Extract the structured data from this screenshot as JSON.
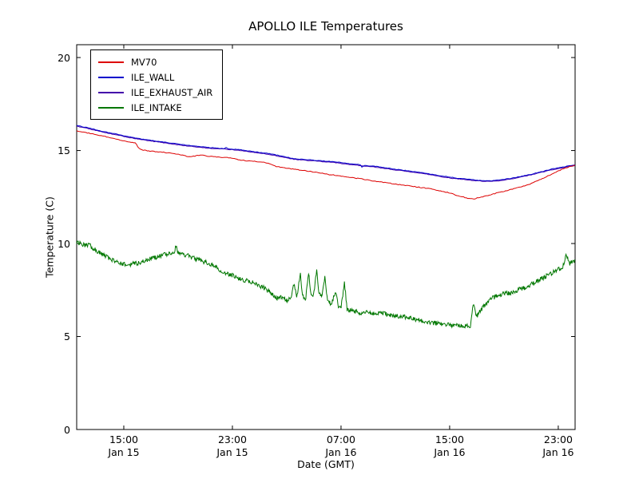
{
  "chart_data": {
    "type": "line",
    "title": "APOLLO ILE Temperatures",
    "xlabel": "Date (GMT)",
    "ylabel": "Temperature (C)",
    "ylim": [
      0,
      20.69
    ],
    "xlim": [
      11.53,
      48.24
    ],
    "x_unit": "hours since Jan 15 00:00 GMT",
    "grid": false,
    "legend_position": "upper left",
    "yticks": [
      {
        "value": 0,
        "label": "0"
      },
      {
        "value": 5,
        "label": "5"
      },
      {
        "value": 10,
        "label": "10"
      },
      {
        "value": 15,
        "label": "15"
      },
      {
        "value": 20,
        "label": "20"
      }
    ],
    "xticks": [
      {
        "value": 15,
        "time": "15:00",
        "date": "Jan 15"
      },
      {
        "value": 23,
        "time": "23:00",
        "date": "Jan 15"
      },
      {
        "value": 31,
        "time": "07:00",
        "date": "Jan 16"
      },
      {
        "value": 39,
        "time": "15:00",
        "date": "Jan 16"
      },
      {
        "value": 47,
        "time": "23:00",
        "date": "Jan 16"
      }
    ],
    "noise_seed": 42,
    "series": [
      {
        "name": "MV70",
        "color": "#dd0000",
        "noise": 0.02,
        "points": [
          [
            11.53,
            16.05
          ],
          [
            12.0,
            16.0
          ],
          [
            12.5,
            15.92
          ],
          [
            13.0,
            15.85
          ],
          [
            13.5,
            15.78
          ],
          [
            14.0,
            15.68
          ],
          [
            14.5,
            15.6
          ],
          [
            15.0,
            15.52
          ],
          [
            15.5,
            15.45
          ],
          [
            15.9,
            15.4
          ],
          [
            16.05,
            15.15
          ],
          [
            16.3,
            15.05
          ],
          [
            16.6,
            15.0
          ],
          [
            17.0,
            14.97
          ],
          [
            17.5,
            14.93
          ],
          [
            18.0,
            14.9
          ],
          [
            18.5,
            14.85
          ],
          [
            19.0,
            14.8
          ],
          [
            19.5,
            14.72
          ],
          [
            19.9,
            14.65
          ],
          [
            20.3,
            14.72
          ],
          [
            20.7,
            14.75
          ],
          [
            21.2,
            14.7
          ],
          [
            22.0,
            14.65
          ],
          [
            22.6,
            14.62
          ],
          [
            23.0,
            14.58
          ],
          [
            23.5,
            14.5
          ],
          [
            24.0,
            14.45
          ],
          [
            24.5,
            14.42
          ],
          [
            25.0,
            14.4
          ],
          [
            25.4,
            14.35
          ],
          [
            25.8,
            14.28
          ],
          [
            26.2,
            14.15
          ],
          [
            26.6,
            14.1
          ],
          [
            27.0,
            14.05
          ],
          [
            27.5,
            14.0
          ],
          [
            28.0,
            13.95
          ],
          [
            28.5,
            13.9
          ],
          [
            29.0,
            13.85
          ],
          [
            29.5,
            13.8
          ],
          [
            30.0,
            13.72
          ],
          [
            30.5,
            13.68
          ],
          [
            31.0,
            13.62
          ],
          [
            31.5,
            13.58
          ],
          [
            32.0,
            13.52
          ],
          [
            32.5,
            13.48
          ],
          [
            33.0,
            13.42
          ],
          [
            33.5,
            13.35
          ],
          [
            34.0,
            13.3
          ],
          [
            34.5,
            13.25
          ],
          [
            35.0,
            13.2
          ],
          [
            35.5,
            13.15
          ],
          [
            36.0,
            13.1
          ],
          [
            36.5,
            13.05
          ],
          [
            37.0,
            13.0
          ],
          [
            37.5,
            12.95
          ],
          [
            38.0,
            12.88
          ],
          [
            38.5,
            12.8
          ],
          [
            39.0,
            12.72
          ],
          [
            39.5,
            12.6
          ],
          [
            40.0,
            12.5
          ],
          [
            40.4,
            12.42
          ],
          [
            40.8,
            12.4
          ],
          [
            41.2,
            12.48
          ],
          [
            41.6,
            12.55
          ],
          [
            42.0,
            12.62
          ],
          [
            42.5,
            12.72
          ],
          [
            43.0,
            12.8
          ],
          [
            43.5,
            12.9
          ],
          [
            44.0,
            13.0
          ],
          [
            44.5,
            13.1
          ],
          [
            45.0,
            13.22
          ],
          [
            45.5,
            13.38
          ],
          [
            46.0,
            13.55
          ],
          [
            46.5,
            13.72
          ],
          [
            47.0,
            13.9
          ],
          [
            47.5,
            14.05
          ],
          [
            48.24,
            14.22
          ]
        ]
      },
      {
        "name": "ILE_WALL",
        "color": "#0000cc",
        "noise": 0.015,
        "points": [
          [
            11.53,
            16.35
          ],
          [
            12.0,
            16.28
          ],
          [
            12.5,
            16.2
          ],
          [
            13.0,
            16.1
          ],
          [
            13.5,
            16.02
          ],
          [
            14.0,
            15.95
          ],
          [
            14.5,
            15.88
          ],
          [
            15.0,
            15.8
          ],
          [
            15.5,
            15.72
          ],
          [
            16.0,
            15.65
          ],
          [
            16.5,
            15.6
          ],
          [
            17.0,
            15.55
          ],
          [
            17.5,
            15.5
          ],
          [
            18.0,
            15.45
          ],
          [
            18.5,
            15.4
          ],
          [
            19.0,
            15.35
          ],
          [
            19.5,
            15.3
          ],
          [
            20.0,
            15.25
          ],
          [
            20.5,
            15.22
          ],
          [
            21.0,
            15.18
          ],
          [
            21.5,
            15.15
          ],
          [
            22.0,
            15.12
          ],
          [
            22.4,
            15.1
          ],
          [
            22.55,
            15.18
          ],
          [
            22.7,
            15.08
          ],
          [
            23.0,
            15.08
          ],
          [
            23.5,
            15.05
          ],
          [
            24.0,
            15.0
          ],
          [
            24.5,
            14.95
          ],
          [
            25.0,
            14.9
          ],
          [
            25.5,
            14.85
          ],
          [
            26.0,
            14.8
          ],
          [
            26.5,
            14.72
          ],
          [
            27.0,
            14.65
          ],
          [
            27.4,
            14.58
          ],
          [
            27.8,
            14.55
          ],
          [
            28.2,
            14.52
          ],
          [
            28.6,
            14.5
          ],
          [
            29.0,
            14.48
          ],
          [
            29.5,
            14.45
          ],
          [
            30.0,
            14.42
          ],
          [
            30.5,
            14.4
          ],
          [
            31.0,
            14.35
          ],
          [
            31.5,
            14.3
          ],
          [
            32.0,
            14.27
          ],
          [
            32.4,
            14.24
          ],
          [
            32.55,
            14.1
          ],
          [
            32.7,
            14.2
          ],
          [
            33.0,
            14.18
          ],
          [
            33.5,
            14.15
          ],
          [
            34.0,
            14.1
          ],
          [
            34.5,
            14.05
          ],
          [
            35.0,
            14.0
          ],
          [
            35.5,
            13.95
          ],
          [
            36.0,
            13.9
          ],
          [
            36.5,
            13.85
          ],
          [
            37.0,
            13.8
          ],
          [
            37.5,
            13.75
          ],
          [
            38.0,
            13.68
          ],
          [
            38.5,
            13.62
          ],
          [
            39.0,
            13.58
          ],
          [
            39.5,
            13.52
          ],
          [
            40.0,
            13.48
          ],
          [
            40.5,
            13.45
          ],
          [
            41.0,
            13.4
          ],
          [
            41.5,
            13.38
          ],
          [
            42.0,
            13.38
          ],
          [
            42.5,
            13.4
          ],
          [
            43.0,
            13.45
          ],
          [
            43.5,
            13.5
          ],
          [
            44.0,
            13.58
          ],
          [
            44.5,
            13.65
          ],
          [
            45.0,
            13.72
          ],
          [
            45.5,
            13.82
          ],
          [
            46.0,
            13.9
          ],
          [
            46.5,
            14.0
          ],
          [
            47.0,
            14.08
          ],
          [
            47.6,
            14.15
          ],
          [
            48.24,
            14.22
          ]
        ]
      },
      {
        "name": "ILE_EXHAUST_AIR",
        "color": "#4400aa",
        "noise": 0.015,
        "points": [
          [
            11.53,
            16.31
          ],
          [
            12.5,
            16.16
          ],
          [
            13.5,
            15.98
          ],
          [
            14.5,
            15.84
          ],
          [
            15.5,
            15.68
          ],
          [
            16.5,
            15.56
          ],
          [
            17.5,
            15.46
          ],
          [
            18.5,
            15.36
          ],
          [
            19.5,
            15.26
          ],
          [
            20.5,
            15.18
          ],
          [
            21.5,
            15.11
          ],
          [
            22.5,
            15.07
          ],
          [
            23.5,
            15.01
          ],
          [
            24.5,
            14.91
          ],
          [
            25.5,
            14.81
          ],
          [
            26.5,
            14.68
          ],
          [
            27.5,
            14.53
          ],
          [
            28.5,
            14.47
          ],
          [
            29.5,
            14.41
          ],
          [
            30.5,
            14.36
          ],
          [
            31.5,
            14.26
          ],
          [
            32.5,
            14.18
          ],
          [
            33.5,
            14.11
          ],
          [
            34.5,
            14.01
          ],
          [
            35.5,
            13.91
          ],
          [
            36.5,
            13.81
          ],
          [
            37.5,
            13.71
          ],
          [
            38.5,
            13.58
          ],
          [
            39.5,
            13.48
          ],
          [
            40.5,
            13.41
          ],
          [
            41.5,
            13.34
          ],
          [
            42.5,
            13.36
          ],
          [
            43.5,
            13.46
          ],
          [
            44.5,
            13.61
          ],
          [
            45.5,
            13.78
          ],
          [
            46.5,
            13.96
          ],
          [
            47.5,
            14.1
          ],
          [
            48.24,
            14.2
          ]
        ]
      },
      {
        "name": "ILE_INTAKE",
        "color": "#007700",
        "noise": 0.12,
        "points": [
          [
            11.53,
            10.0
          ],
          [
            11.8,
            10.05
          ],
          [
            12.1,
            9.9
          ],
          [
            12.4,
            9.95
          ],
          [
            12.8,
            9.72
          ],
          [
            13.2,
            9.5
          ],
          [
            13.6,
            9.35
          ],
          [
            14.0,
            9.2
          ],
          [
            14.4,
            9.02
          ],
          [
            14.8,
            8.9
          ],
          [
            15.2,
            8.85
          ],
          [
            15.6,
            8.9
          ],
          [
            16.0,
            8.95
          ],
          [
            16.5,
            9.05
          ],
          [
            17.0,
            9.18
          ],
          [
            17.5,
            9.3
          ],
          [
            18.0,
            9.4
          ],
          [
            18.4,
            9.45
          ],
          [
            18.7,
            9.55
          ],
          [
            18.85,
            9.85
          ],
          [
            19.0,
            9.5
          ],
          [
            19.3,
            9.45
          ],
          [
            19.7,
            9.35
          ],
          [
            20.0,
            9.28
          ],
          [
            20.5,
            9.12
          ],
          [
            21.0,
            9.0
          ],
          [
            21.5,
            8.85
          ],
          [
            22.0,
            8.62
          ],
          [
            22.5,
            8.42
          ],
          [
            23.0,
            8.28
          ],
          [
            23.5,
            8.12
          ],
          [
            24.0,
            8.0
          ],
          [
            24.5,
            7.9
          ],
          [
            25.0,
            7.75
          ],
          [
            25.5,
            7.52
          ],
          [
            26.0,
            7.25
          ],
          [
            26.3,
            7.05
          ],
          [
            26.6,
            7.15
          ],
          [
            27.0,
            6.95
          ],
          [
            27.3,
            7.05
          ],
          [
            27.55,
            7.9
          ],
          [
            27.75,
            7.1
          ],
          [
            28.0,
            8.4
          ],
          [
            28.15,
            7.2
          ],
          [
            28.4,
            7.05
          ],
          [
            28.6,
            8.5
          ],
          [
            28.8,
            7.15
          ],
          [
            29.0,
            7.3
          ],
          [
            29.2,
            8.6
          ],
          [
            29.35,
            7.4
          ],
          [
            29.6,
            7.2
          ],
          [
            29.8,
            8.2
          ],
          [
            30.0,
            6.95
          ],
          [
            30.3,
            6.75
          ],
          [
            30.6,
            7.4
          ],
          [
            30.8,
            6.65
          ],
          [
            31.0,
            6.55
          ],
          [
            31.25,
            7.9
          ],
          [
            31.45,
            6.45
          ],
          [
            32.0,
            6.35
          ],
          [
            32.5,
            6.28
          ],
          [
            33.0,
            6.32
          ],
          [
            33.5,
            6.22
          ],
          [
            34.0,
            6.28
          ],
          [
            34.5,
            6.18
          ],
          [
            35.0,
            6.12
          ],
          [
            35.5,
            6.08
          ],
          [
            36.0,
            6.0
          ],
          [
            36.5,
            5.92
          ],
          [
            37.0,
            5.82
          ],
          [
            37.5,
            5.76
          ],
          [
            38.0,
            5.72
          ],
          [
            38.5,
            5.66
          ],
          [
            39.0,
            5.62
          ],
          [
            39.5,
            5.6
          ],
          [
            40.0,
            5.55
          ],
          [
            40.3,
            5.6
          ],
          [
            40.55,
            5.58
          ],
          [
            40.75,
            6.9
          ],
          [
            40.95,
            6.0
          ],
          [
            41.2,
            6.35
          ],
          [
            41.5,
            6.6
          ],
          [
            42.0,
            7.0
          ],
          [
            42.5,
            7.2
          ],
          [
            43.0,
            7.3
          ],
          [
            43.5,
            7.35
          ],
          [
            44.0,
            7.5
          ],
          [
            44.5,
            7.62
          ],
          [
            45.0,
            7.8
          ],
          [
            45.5,
            8.0
          ],
          [
            46.0,
            8.2
          ],
          [
            46.5,
            8.4
          ],
          [
            47.0,
            8.6
          ],
          [
            47.35,
            8.78
          ],
          [
            47.6,
            9.45
          ],
          [
            47.8,
            8.9
          ],
          [
            48.24,
            9.1
          ]
        ]
      }
    ]
  }
}
